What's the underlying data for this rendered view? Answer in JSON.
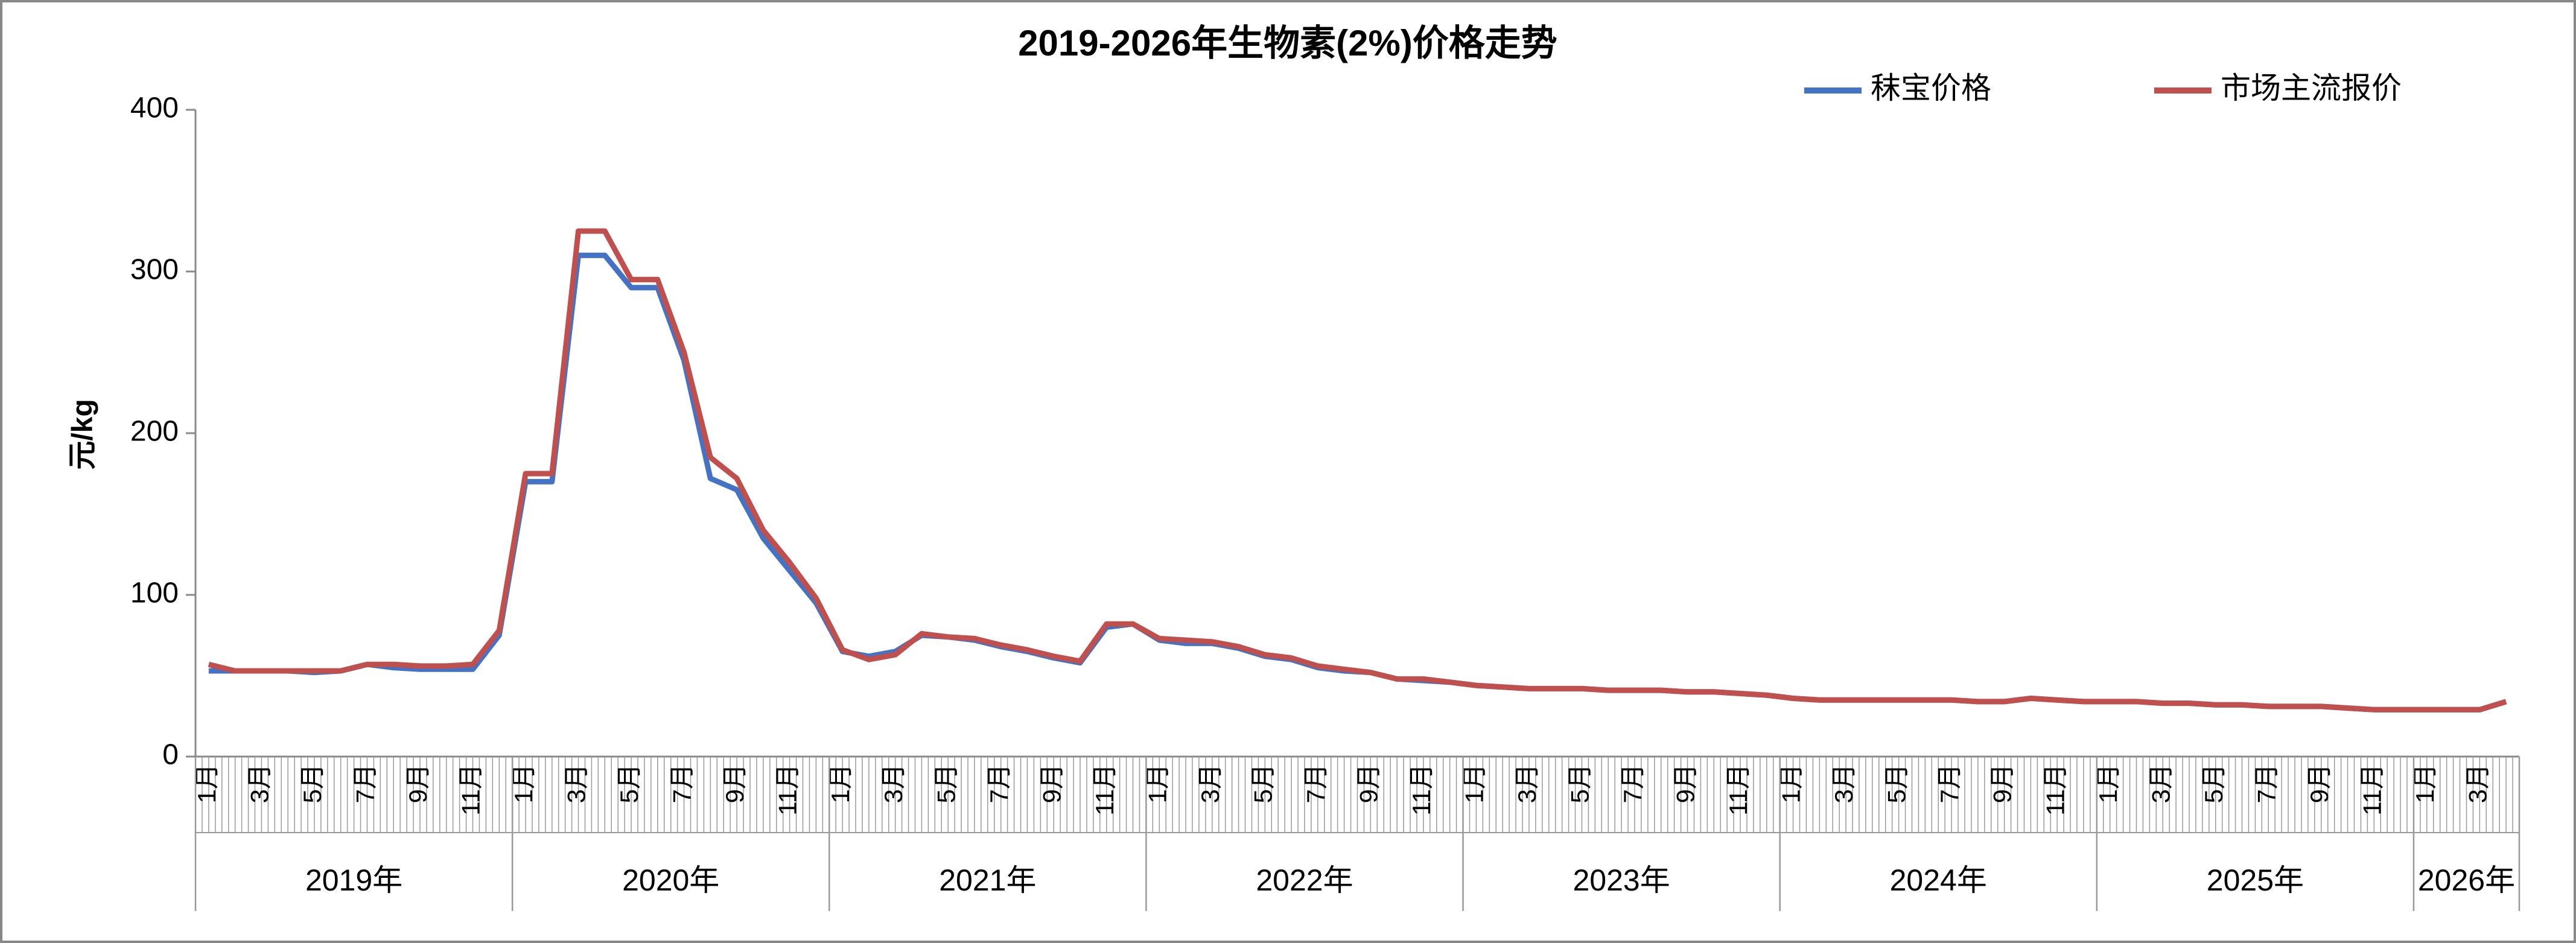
{
  "chart_data": {
    "type": "line",
    "title": "2019-2026年生物素(2%)价格走势",
    "y_label": "元/kg",
    "ylim": [
      0,
      400
    ],
    "yticks": [
      0,
      100,
      200,
      300,
      400
    ],
    "grid": false,
    "legend": "top-right",
    "categories": [
      "1月",
      null,
      "3月",
      null,
      "5月",
      null,
      "7月",
      null,
      "9月",
      null,
      "11月",
      null,
      "1月",
      null,
      "3月",
      null,
      "5月",
      null,
      "7月",
      null,
      "9月",
      null,
      "11月",
      null,
      "1月",
      null,
      "3月",
      null,
      "5月",
      null,
      "7月",
      null,
      "9月",
      null,
      "11月",
      null,
      "1月",
      null,
      "3月",
      null,
      "5月",
      null,
      "7月",
      null,
      "9月",
      null,
      "11月",
      null,
      "1月",
      null,
      "3月",
      null,
      "5月",
      null,
      "7月",
      null,
      "9月",
      null,
      "11月",
      null,
      "1月",
      null,
      "3月",
      null,
      "5月",
      null,
      "7月",
      null,
      "9月",
      null,
      "11月",
      null,
      "1月",
      null,
      "3月",
      null,
      "5月",
      null,
      "7月",
      null,
      "9月",
      null,
      "11月",
      null,
      "1月",
      null,
      "3月",
      null
    ],
    "years": [
      "2019年",
      "2020年",
      "2021年",
      "2022年",
      "2023年",
      "2024年",
      "2025年",
      "2026年"
    ],
    "series": [
      {
        "name": "秣宝价格",
        "color": "#4472c4",
        "values": [
          53,
          53,
          53,
          53,
          52,
          53,
          57,
          55,
          54,
          54,
          54,
          75,
          170,
          170,
          310,
          310,
          290,
          290,
          245,
          172,
          165,
          135,
          115,
          95,
          65,
          62,
          65,
          75,
          74,
          72,
          68,
          65,
          61,
          58,
          80,
          82,
          72,
          70,
          70,
          67,
          62,
          60,
          55,
          53,
          52,
          48,
          47,
          46,
          44,
          43,
          42,
          42,
          42,
          41,
          41,
          41,
          40,
          40,
          39,
          38,
          36,
          35,
          35,
          35,
          35,
          35,
          35,
          34,
          34,
          36,
          35,
          34,
          34,
          34,
          33,
          33,
          32,
          32,
          31,
          31,
          31,
          30,
          29,
          29,
          29,
          29,
          29,
          34
        ]
      },
      {
        "name": "市场主流报价",
        "color": "#c0504d",
        "values": [
          57,
          53,
          53,
          53,
          53,
          53,
          57,
          57,
          56,
          56,
          57,
          78,
          175,
          175,
          325,
          325,
          295,
          295,
          250,
          185,
          172,
          140,
          120,
          98,
          66,
          60,
          63,
          76,
          74,
          73,
          69,
          66,
          62,
          59,
          82,
          82,
          73,
          72,
          71,
          68,
          63,
          61,
          56,
          54,
          52,
          48,
          48,
          46,
          44,
          43,
          42,
          42,
          42,
          41,
          41,
          41,
          40,
          40,
          39,
          38,
          36,
          35,
          35,
          35,
          35,
          35,
          35,
          34,
          34,
          36,
          35,
          34,
          34,
          34,
          33,
          33,
          32,
          32,
          31,
          31,
          31,
          30,
          29,
          29,
          29,
          29,
          29,
          34
        ]
      }
    ]
  }
}
